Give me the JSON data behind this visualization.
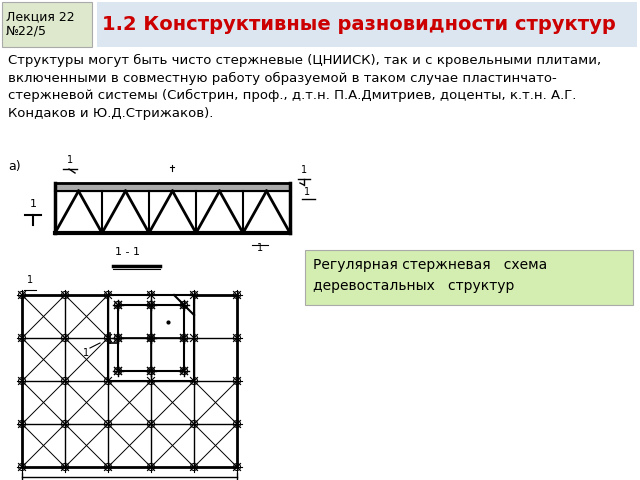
{
  "bg_color": "#ffffff",
  "header_box_color": "#dde8cc",
  "header_title_bg_color": "#dce6f1",
  "header_title_color": "#cc0000",
  "header_lecture_text": "Лекция 22\n№22/5",
  "header_title_text": "1.2 Конструктивные разновидности структур",
  "body_bg_color": "#ffffff",
  "body_text": "Структуры могут быть чисто стержневые (ЦНИИСК), так и с кровельными плитами,\nвключенными в совместную работу образуемой в таком случае пластинчато-\nстержневой системы (Сибстрин, проф., д.т.н. П.А.Дмитриев, доценты, к.т.н. А.Г.\nКондаков и Ю.Д.Стрижаков).",
  "caption_bg_color": "#d4edb0",
  "caption_text": "Регулярная стержневая   схема\nдеревостальных   структур",
  "label_a": "а)",
  "body_text_fontsize": 9.5,
  "caption_fontsize": 10,
  "header_lecture_fontsize": 9,
  "header_title_fontsize": 14
}
